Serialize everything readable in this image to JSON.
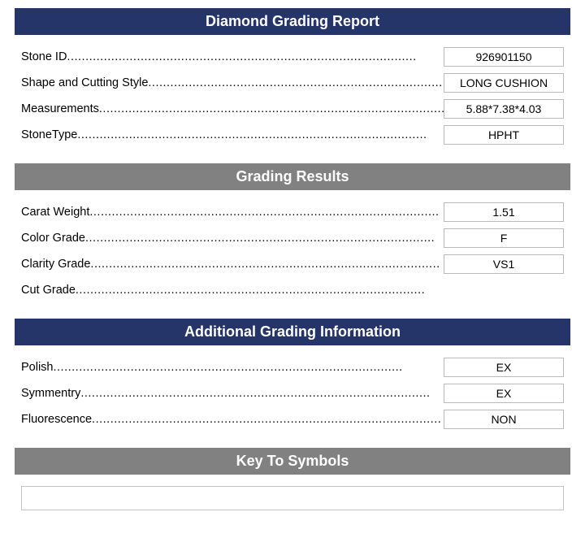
{
  "colors": {
    "navy": "#253469",
    "gray": "#818181",
    "border": "#b9b9b9",
    "text": "#000000",
    "heading_text": "#ffffff",
    "background": "#ffffff"
  },
  "sections": {
    "report": {
      "title": "Diamond Grading Report",
      "header_color": "#253469",
      "fields": {
        "stone_id": {
          "label": "Stone ID",
          "value": "926901150"
        },
        "shape": {
          "label": "Shape and Cutting Style",
          "value": "LONG CUSHION"
        },
        "measure": {
          "label": "Measurements",
          "value": "5.88*7.38*4.03"
        },
        "stone_type": {
          "label": "StoneType",
          "value": "HPHT"
        }
      }
    },
    "grading": {
      "title": "Grading Results",
      "header_color": "#818181",
      "fields": {
        "carat": {
          "label": "Carat Weight",
          "value": "1.51"
        },
        "color": {
          "label": "Color Grade",
          "value": "F"
        },
        "clarity": {
          "label": "Clarity Grade",
          "value": "VS1"
        },
        "cut": {
          "label": "Cut Grade",
          "value": ""
        }
      }
    },
    "additional": {
      "title": "Additional Grading Information",
      "header_color": "#253469",
      "fields": {
        "polish": {
          "label": "Polish",
          "value": "EX"
        },
        "symmetry": {
          "label": "Symmentry",
          "value": "EX"
        },
        "fluor": {
          "label": "Fluorescence",
          "value": "NON"
        }
      }
    },
    "symbols": {
      "title": "Key To Symbols",
      "header_color": "#818181",
      "content": ""
    }
  }
}
